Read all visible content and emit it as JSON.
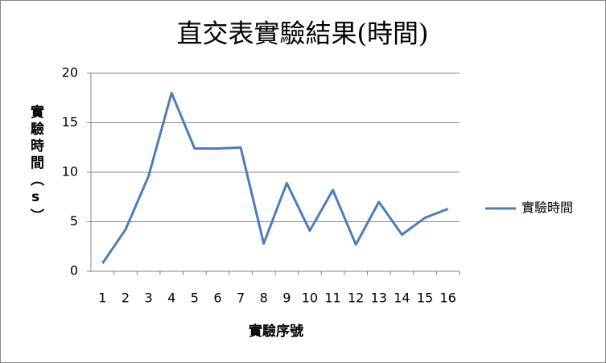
{
  "chart_data": {
    "type": "line",
    "title": "直交表實驗結果(時間)",
    "x_label": "實驗序號",
    "y_label": "實驗時間（s）",
    "categories": [
      "1",
      "2",
      "3",
      "4",
      "5",
      "6",
      "7",
      "8",
      "9",
      "10",
      "11",
      "12",
      "13",
      "14",
      "15",
      "16"
    ],
    "series": [
      {
        "name": "實驗時間",
        "color": "#4a7ebb",
        "values": [
          0.8,
          4.2,
          9.6,
          18.0,
          12.4,
          12.4,
          12.5,
          2.8,
          8.9,
          4.1,
          8.2,
          2.7,
          7.0,
          3.7,
          5.4,
          6.3
        ]
      }
    ],
    "ylim": [
      0,
      20
    ],
    "yticks": [
      0,
      5,
      10,
      15,
      20
    ],
    "grid": true,
    "legend": "right"
  }
}
